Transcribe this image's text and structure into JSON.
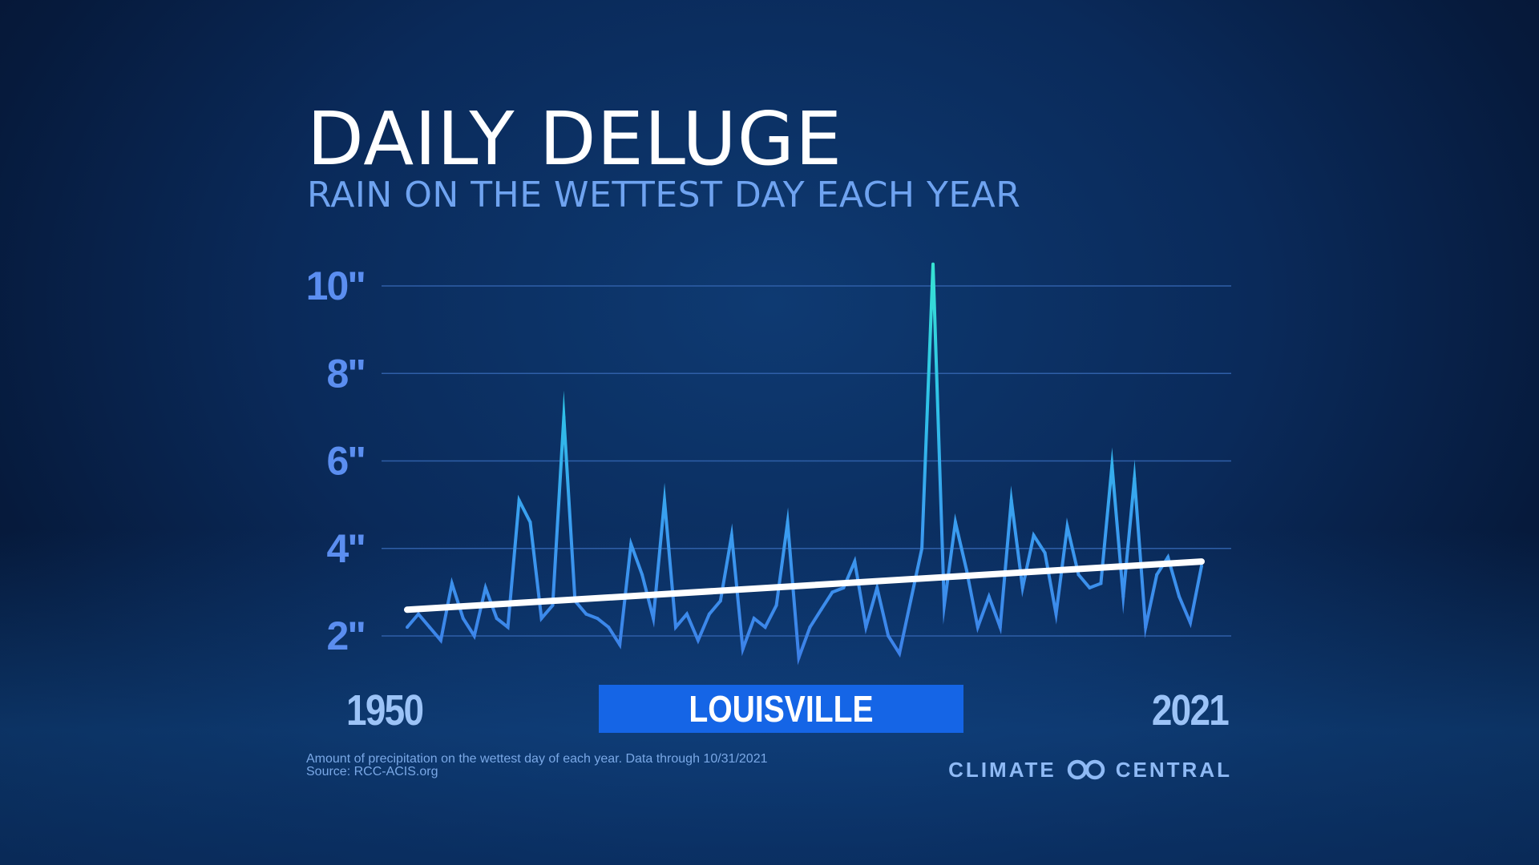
{
  "title": "DAILY DELUGE",
  "subtitle": "RAIN ON THE WETTEST DAY EACH YEAR",
  "location": "LOUISVILLE",
  "footnote_line1": "Amount of precipitation on the wettest day of each year. Data through 10/31/2021",
  "footnote_line2": "Source: RCC-ACIS.org",
  "brand": {
    "left": "CLIMATE",
    "right": "CENTRAL"
  },
  "colors": {
    "background": "#0a2a5a",
    "line": "#3d8ff0",
    "peak": "#37e2d3",
    "trend": "#ffffff",
    "axis_labels": "#5b8ef0",
    "banner": "#1565e6"
  },
  "chart_data": {
    "type": "line",
    "title": "DAILY DELUGE",
    "subtitle": "RAIN ON THE WETTEST DAY EACH YEAR",
    "xlabel": "",
    "ylabel": "",
    "x_tick_labels": [
      "1950",
      "2021"
    ],
    "y_ticks": [
      2,
      4,
      6,
      8,
      10
    ],
    "y_tick_labels": [
      "2\"",
      "4\"",
      "6\"",
      "8\"",
      "10\""
    ],
    "ylim": [
      2,
      10
    ],
    "xlim": [
      1950,
      2021
    ],
    "grid": true,
    "series": [
      {
        "values": [
          {
            "x": 1950,
            "y": 2.2
          },
          {
            "x": 1951,
            "y": 2.5
          },
          {
            "x": 1952,
            "y": 2.2
          },
          {
            "x": 1953,
            "y": 1.9
          },
          {
            "x": 1954,
            "y": 3.2
          },
          {
            "x": 1955,
            "y": 2.4
          },
          {
            "x": 1956,
            "y": 2.0
          },
          {
            "x": 1957,
            "y": 3.1
          },
          {
            "x": 1958,
            "y": 2.4
          },
          {
            "x": 1959,
            "y": 2.2
          },
          {
            "x": 1960,
            "y": 5.1
          },
          {
            "x": 1961,
            "y": 4.6
          },
          {
            "x": 1962,
            "y": 2.4
          },
          {
            "x": 1963,
            "y": 2.7
          },
          {
            "x": 1964,
            "y": 7.0
          },
          {
            "x": 1965,
            "y": 2.8
          },
          {
            "x": 1966,
            "y": 2.5
          },
          {
            "x": 1967,
            "y": 2.4
          },
          {
            "x": 1968,
            "y": 2.2
          },
          {
            "x": 1969,
            "y": 1.8
          },
          {
            "x": 1970,
            "y": 4.1
          },
          {
            "x": 1971,
            "y": 3.4
          },
          {
            "x": 1972,
            "y": 2.4
          },
          {
            "x": 1973,
            "y": 5.1
          },
          {
            "x": 1974,
            "y": 2.2
          },
          {
            "x": 1975,
            "y": 2.5
          },
          {
            "x": 1976,
            "y": 1.9
          },
          {
            "x": 1977,
            "y": 2.5
          },
          {
            "x": 1978,
            "y": 2.8
          },
          {
            "x": 1979,
            "y": 4.3
          },
          {
            "x": 1980,
            "y": 1.7
          },
          {
            "x": 1981,
            "y": 2.4
          },
          {
            "x": 1982,
            "y": 2.2
          },
          {
            "x": 1983,
            "y": 2.7
          },
          {
            "x": 1984,
            "y": 4.6
          },
          {
            "x": 1985,
            "y": 1.5
          },
          {
            "x": 1986,
            "y": 2.2
          },
          {
            "x": 1987,
            "y": 2.6
          },
          {
            "x": 1988,
            "y": 3.0
          },
          {
            "x": 1989,
            "y": 3.1
          },
          {
            "x": 1990,
            "y": 3.7
          },
          {
            "x": 1991,
            "y": 2.2
          },
          {
            "x": 1992,
            "y": 3.1
          },
          {
            "x": 1993,
            "y": 2.0
          },
          {
            "x": 1994,
            "y": 1.6
          },
          {
            "x": 1995,
            "y": 2.8
          },
          {
            "x": 1996,
            "y": 4.0
          },
          {
            "x": 1997,
            "y": 10.5
          },
          {
            "x": 1998,
            "y": 2.7
          },
          {
            "x": 1999,
            "y": 4.6
          },
          {
            "x": 2000,
            "y": 3.5
          },
          {
            "x": 2001,
            "y": 2.2
          },
          {
            "x": 2002,
            "y": 2.9
          },
          {
            "x": 2003,
            "y": 2.2
          },
          {
            "x": 2004,
            "y": 5.1
          },
          {
            "x": 2005,
            "y": 3.1
          },
          {
            "x": 2006,
            "y": 4.3
          },
          {
            "x": 2007,
            "y": 3.9
          },
          {
            "x": 2008,
            "y": 2.5
          },
          {
            "x": 2009,
            "y": 4.5
          },
          {
            "x": 2010,
            "y": 3.4
          },
          {
            "x": 2011,
            "y": 3.1
          },
          {
            "x": 2012,
            "y": 3.2
          },
          {
            "x": 2013,
            "y": 5.9
          },
          {
            "x": 2014,
            "y": 2.9
          },
          {
            "x": 2015,
            "y": 5.6
          },
          {
            "x": 2016,
            "y": 2.2
          },
          {
            "x": 2017,
            "y": 3.4
          },
          {
            "x": 2018,
            "y": 3.8
          },
          {
            "x": 2019,
            "y": 2.9
          },
          {
            "x": 2020,
            "y": 2.3
          },
          {
            "x": 2021,
            "y": 3.6
          }
        ]
      }
    ],
    "trend": {
      "x0": 1950,
      "y0": 2.6,
      "x1": 2021,
      "y1": 3.7
    }
  }
}
